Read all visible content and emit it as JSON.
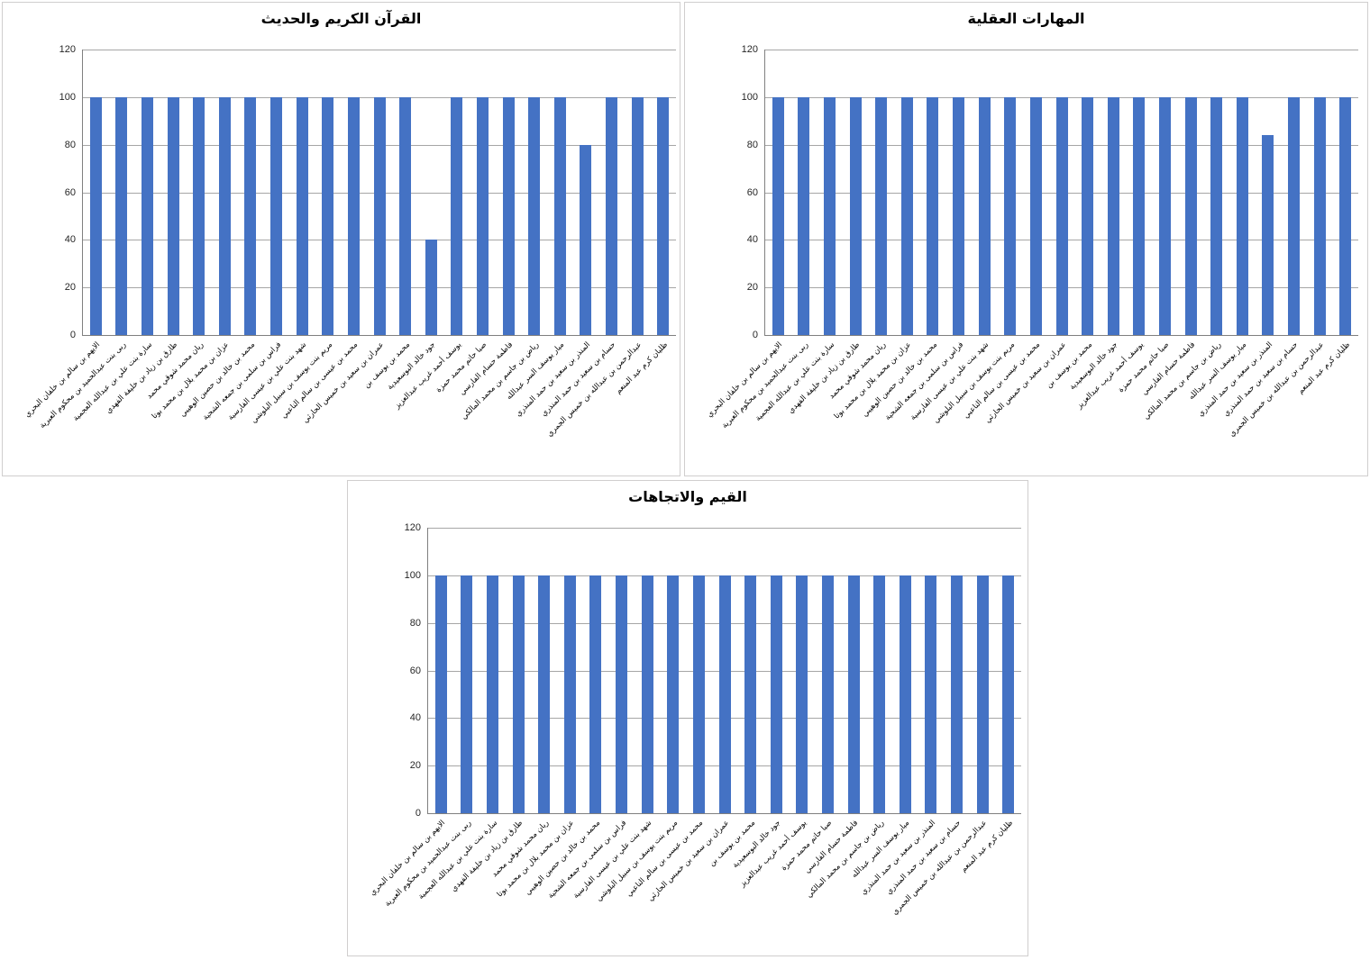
{
  "colors": {
    "bar": "#4472C4",
    "gridline": "#A6A6A6",
    "axis": "#808080",
    "panel_border": "#D0CECE",
    "tick_text": "#262626",
    "title_text": "#000000"
  },
  "chart_data": [
    {
      "type": "bar",
      "title": "القرآن الكريم والحديث",
      "xlabel": "",
      "ylabel": "",
      "ylim": [
        0,
        120
      ],
      "y_ticks": [
        0,
        20,
        40,
        60,
        80,
        100,
        120
      ],
      "grid": true,
      "legend": "none",
      "categories": [
        "الايهم بن سالم بن خلفان البحري",
        "ربى بنت عبدالحميد بن محكوم العبرية",
        "سارة بنت علي بن عبدالله العجمية",
        "طارق بن زياد بن خليفة الفهدي",
        "ريان محمد شوقي محمد",
        "عزان بن محمد بلال بن محمد بوتا",
        "محمد بن خالد بن حصين الوهيبي",
        "فراس بن سلمى بن جمعه الشحية",
        "شهد بنت علي بن عيسى الفارسية",
        "مريم بنت يوسف بن سبيل البلوشي",
        "محمد بن عيسى بن سالم الناعبي",
        "عمران بن سعيد بن خميس الحارثي",
        "محمد بن يوسف بن",
        "جود خالد البوسعيدية",
        "يوسف أحمد غريب عبدالعزيز",
        "صبا حاتم محمد حمزة",
        "فاطمة حسام الفارسي",
        "رياض بن جاسم بن محمد المالكي",
        "ميار يوسف السر عبدالله",
        "المنذر بن سعيد بن حمد المنذري",
        "حسام بن سعيد بن حمد المنذري",
        "عبدالرحمن بن عبدالله بن خميس الجمري",
        "ظليان كرم عبد المنعم"
      ],
      "values": [
        100,
        100,
        100,
        100,
        100,
        100,
        100,
        100,
        100,
        100,
        100,
        100,
        100,
        40,
        100,
        100,
        100,
        100,
        100,
        80,
        100,
        100,
        100
      ]
    },
    {
      "type": "bar",
      "title": "المهارات العقلية",
      "xlabel": "",
      "ylabel": "",
      "ylim": [
        0,
        120
      ],
      "y_ticks": [
        0,
        20,
        40,
        60,
        80,
        100,
        120
      ],
      "grid": true,
      "legend": "none",
      "categories": [
        "الايهم بن سالم بن خلفان البحري",
        "ربى بنت عبدالحميد بن محكوم العبرية",
        "سارة بنت علي بن عبدالله العجمية",
        "طارق بن زياد بن خليفة الفهدي",
        "ريان محمد شوقي محمد",
        "عزان بن محمد بلال بن محمد بوتا",
        "محمد بن خالد بن حصين الوهيبي",
        "فراس بن سلمى بن جمعه الشحية",
        "شهد بنت علي بن عيسى الفارسية",
        "مريم بنت يوسف بن سبيل البلوشي",
        "محمد بن عيسى بن سالم الناعبي",
        "عمران بن سعيد بن خميس الحارثي",
        "محمد بن يوسف بن",
        "جود خالد البوسعيدية",
        "يوسف أحمد غريب عبدالعزيز",
        "صبا حاتم محمد حمزة",
        "فاطمة حسام الفارسي",
        "رياض بن جاسم بن محمد المالكي",
        "ميار يوسف السر عبدالله",
        "المنذر بن سعيد بن حمد المنذري",
        "حسام بن سعيد بن حمد المنذري",
        "عبدالرحمن بن عبدالله بن خميس الجمري",
        "ظليان كرم عبد المنعم"
      ],
      "values": [
        100,
        100,
        100,
        100,
        100,
        100,
        100,
        100,
        100,
        100,
        100,
        100,
        100,
        100,
        100,
        100,
        100,
        100,
        100,
        84,
        100,
        100,
        100
      ]
    },
    {
      "type": "bar",
      "title": "القيم والاتجاهات",
      "xlabel": "",
      "ylabel": "",
      "ylim": [
        0,
        120
      ],
      "y_ticks": [
        0,
        20,
        40,
        60,
        80,
        100,
        120
      ],
      "grid": true,
      "legend": "none",
      "categories": [
        "الايهم بن سالم بن خلفان البحري",
        "ربى بنت عبدالحميد بن محكوم العبرية",
        "سارة بنت علي بن عبدالله العجمية",
        "طارق بن زياد بن خليفة الفهدي",
        "ريان محمد شوقي محمد",
        "عزان بن محمد بلال بن محمد بوتا",
        "محمد بن خالد بن حصين الوهيبي",
        "فراس بن سلمى بن جمعه الشحية",
        "شهد بنت علي بن عيسى الفارسية",
        "مريم بنت يوسف بن سبيل البلوشي",
        "محمد بن عيسى بن سالم الناعبي",
        "عمران بن سعيد بن خميس الحارثي",
        "محمد بن يوسف بن",
        "جود خالد البوسعيدية",
        "يوسف أحمد غريب عبدالعزيز",
        "صبا حاتم محمد حمزة",
        "فاطمة حسام الفارسي",
        "رياض بن جاسم بن محمد المالكي",
        "ميار يوسف السر عبدالله",
        "المنذر بن سعيد بن حمد المنذري",
        "حسام بن سعيد بن حمد المنذري",
        "عبدالرحمن بن عبدالله بن خميس الجمري",
        "ظليان كرم عبد المنعم"
      ],
      "values": [
        100,
        100,
        100,
        100,
        100,
        100,
        100,
        100,
        100,
        100,
        100,
        100,
        100,
        100,
        100,
        100,
        100,
        100,
        100,
        100,
        100,
        100,
        100
      ]
    }
  ]
}
